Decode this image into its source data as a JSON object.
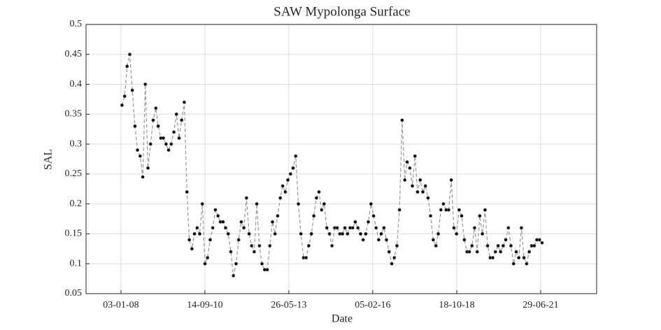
{
  "chart_data": {
    "type": "line",
    "title": "SAW Mypolonga Surface",
    "xlabel": "Date",
    "ylabel": "SAL",
    "x": [
      "2008-01-15",
      "2008-02-15",
      "2008-03-15",
      "2008-04-15",
      "2008-05-15",
      "2008-06-15",
      "2008-07-15",
      "2008-08-15",
      "2008-09-15",
      "2008-10-15",
      "2008-11-15",
      "2008-12-15",
      "2009-01-15",
      "2009-02-15",
      "2009-03-15",
      "2009-04-15",
      "2009-05-15",
      "2009-06-15",
      "2009-07-15",
      "2009-08-15",
      "2009-09-15",
      "2009-10-15",
      "2009-11-15",
      "2009-12-15",
      "2010-01-15",
      "2010-02-15",
      "2010-03-15",
      "2010-04-15",
      "2010-05-15",
      "2010-06-15",
      "2010-07-15",
      "2010-08-15",
      "2010-09-15",
      "2010-10-15",
      "2010-11-15",
      "2010-12-15",
      "2011-01-15",
      "2011-02-15",
      "2011-03-15",
      "2011-04-15",
      "2011-05-15",
      "2011-06-15",
      "2011-07-15",
      "2011-08-15",
      "2011-09-15",
      "2011-10-15",
      "2011-11-15",
      "2011-12-15",
      "2012-01-15",
      "2012-02-15",
      "2012-03-15",
      "2012-04-15",
      "2012-05-15",
      "2012-06-15",
      "2012-07-15",
      "2012-08-15",
      "2012-09-15",
      "2012-10-15",
      "2012-11-15",
      "2012-12-15",
      "2013-01-15",
      "2013-02-15",
      "2013-03-15",
      "2013-04-15",
      "2013-05-15",
      "2013-06-15",
      "2013-07-15",
      "2013-08-15",
      "2013-09-15",
      "2013-10-15",
      "2013-11-15",
      "2013-12-15",
      "2014-01-15",
      "2014-02-15",
      "2014-03-15",
      "2014-04-15",
      "2014-05-15",
      "2014-06-15",
      "2014-07-15",
      "2014-08-15",
      "2014-09-15",
      "2014-10-15",
      "2014-11-15",
      "2014-12-15",
      "2015-01-15",
      "2015-02-15",
      "2015-03-15",
      "2015-04-15",
      "2015-05-15",
      "2015-06-15",
      "2015-07-15",
      "2015-08-15",
      "2015-09-15",
      "2015-10-15",
      "2015-11-15",
      "2015-12-15",
      "2016-01-15",
      "2016-02-15",
      "2016-03-15",
      "2016-04-15",
      "2016-05-15",
      "2016-06-15",
      "2016-07-15",
      "2016-08-15",
      "2016-09-15",
      "2016-10-15",
      "2016-11-15",
      "2016-12-15",
      "2017-01-15",
      "2017-02-15",
      "2017-03-15",
      "2017-04-15",
      "2017-05-15",
      "2017-06-15",
      "2017-07-15",
      "2017-08-15",
      "2017-09-15",
      "2017-10-15",
      "2017-11-15",
      "2017-12-15",
      "2018-01-15",
      "2018-02-15",
      "2018-03-15",
      "2018-04-15",
      "2018-05-15",
      "2018-06-15",
      "2018-07-15",
      "2018-08-15",
      "2018-09-15",
      "2018-10-15",
      "2018-11-15",
      "2018-12-15",
      "2019-01-15",
      "2019-02-15",
      "2019-03-15",
      "2019-04-15",
      "2019-05-15",
      "2019-06-15",
      "2019-07-15",
      "2019-08-15",
      "2019-09-15",
      "2019-10-15",
      "2019-11-15",
      "2019-12-15",
      "2020-01-15",
      "2020-02-15",
      "2020-03-15",
      "2020-04-15",
      "2020-05-15",
      "2020-06-15",
      "2020-07-15",
      "2020-08-15",
      "2020-09-15",
      "2020-10-15",
      "2020-11-15",
      "2020-12-15",
      "2021-01-15",
      "2021-02-15",
      "2021-03-15",
      "2021-04-15",
      "2021-05-15",
      "2021-06-15",
      "2021-07-15"
    ],
    "series": [
      {
        "name": "SAL",
        "color": "#000000",
        "line_color": "#999999",
        "values": [
          0.365,
          0.38,
          0.43,
          0.45,
          0.39,
          0.33,
          0.29,
          0.28,
          0.245,
          0.4,
          0.26,
          0.3,
          0.34,
          0.36,
          0.33,
          0.31,
          0.31,
          0.3,
          0.29,
          0.3,
          0.32,
          0.35,
          0.31,
          0.34,
          0.37,
          0.22,
          0.14,
          0.125,
          0.15,
          0.16,
          0.15,
          0.2,
          0.1,
          0.11,
          0.14,
          0.16,
          0.19,
          0.18,
          0.17,
          0.17,
          0.16,
          0.15,
          0.12,
          0.08,
          0.1,
          0.14,
          0.17,
          0.16,
          0.21,
          0.15,
          0.13,
          0.12,
          0.2,
          0.13,
          0.1,
          0.09,
          0.09,
          0.13,
          0.17,
          0.15,
          0.18,
          0.21,
          0.23,
          0.22,
          0.24,
          0.25,
          0.26,
          0.28,
          0.2,
          0.15,
          0.11,
          0.11,
          0.13,
          0.15,
          0.18,
          0.21,
          0.22,
          0.19,
          0.2,
          0.16,
          0.15,
          0.13,
          0.16,
          0.16,
          0.15,
          0.15,
          0.16,
          0.15,
          0.16,
          0.16,
          0.17,
          0.16,
          0.15,
          0.14,
          0.15,
          0.17,
          0.2,
          0.18,
          0.16,
          0.14,
          0.15,
          0.16,
          0.14,
          0.12,
          0.1,
          0.11,
          0.13,
          0.19,
          0.34,
          0.24,
          0.27,
          0.26,
          0.23,
          0.28,
          0.22,
          0.24,
          0.22,
          0.23,
          0.21,
          0.18,
          0.14,
          0.13,
          0.15,
          0.19,
          0.2,
          0.19,
          0.19,
          0.24,
          0.16,
          0.15,
          0.19,
          0.18,
          0.14,
          0.12,
          0.12,
          0.13,
          0.16,
          0.12,
          0.18,
          0.15,
          0.19,
          0.13,
          0.11,
          0.11,
          0.12,
          0.13,
          0.12,
          0.13,
          0.14,
          0.16,
          0.13,
          0.1,
          0.12,
          0.11,
          0.16,
          0.11,
          0.1,
          0.12,
          0.13,
          0.13,
          0.14,
          0.14,
          0.135
        ]
      }
    ],
    "xlim": [
      "2006-11-19",
      "2023-04-17"
    ],
    "xticks": [
      {
        "value": "2008-01-03",
        "label": "03-01-08"
      },
      {
        "value": "2010-09-14",
        "label": "14-09-10"
      },
      {
        "value": "2013-05-26",
        "label": "26-05-13"
      },
      {
        "value": "2016-02-05",
        "label": "05-02-16"
      },
      {
        "value": "2018-10-18",
        "label": "18-10-18"
      },
      {
        "value": "2021-06-29",
        "label": "29-06-21"
      }
    ],
    "ylim": [
      0.05,
      0.5
    ],
    "yticks": [
      0.05,
      0.1,
      0.15,
      0.2,
      0.25,
      0.3,
      0.35,
      0.4,
      0.45,
      0.5
    ],
    "grid": true
  }
}
